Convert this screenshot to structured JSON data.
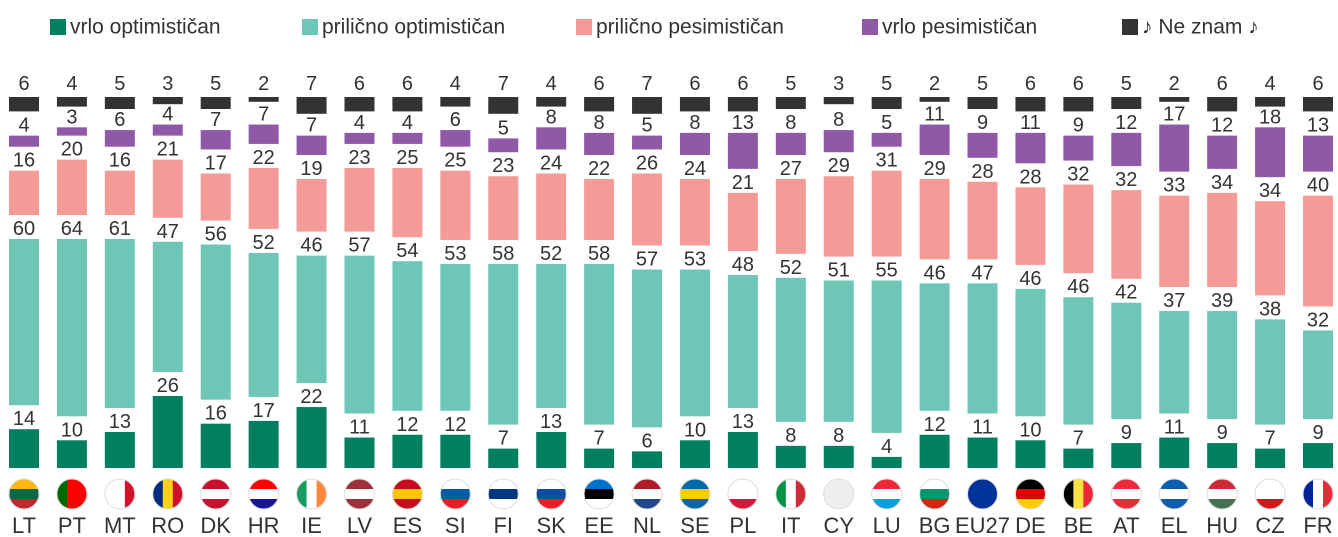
{
  "chart_data": {
    "type": "stacked_bar",
    "categories": [
      "LT",
      "PT",
      "MT",
      "RO",
      "DK",
      "HR",
      "IE",
      "LV",
      "ES",
      "SI",
      "FI",
      "SK",
      "EE",
      "NL",
      "SE",
      "PL",
      "IT",
      "CY",
      "LU",
      "BG",
      "EU27",
      "DE",
      "BE",
      "AT",
      "EL",
      "HU",
      "CZ",
      "FR"
    ],
    "series": [
      {
        "name": "vrlo optimističan",
        "color": "#00805f",
        "values": [
          14,
          10,
          13,
          26,
          16,
          17,
          22,
          11,
          12,
          12,
          7,
          13,
          7,
          6,
          10,
          13,
          8,
          8,
          4,
          12,
          11,
          10,
          7,
          9,
          11,
          9,
          7,
          9
        ]
      },
      {
        "name": "prilično optimističan",
        "color": "#6ec7b6",
        "values": [
          60,
          64,
          61,
          47,
          56,
          52,
          46,
          57,
          54,
          53,
          58,
          52,
          58,
          57,
          53,
          48,
          52,
          51,
          55,
          46,
          47,
          46,
          46,
          42,
          37,
          39,
          38,
          32
        ]
      },
      {
        "name": "prilično pesimističan",
        "color": "#f59b97",
        "values": [
          16,
          20,
          16,
          21,
          17,
          22,
          19,
          23,
          25,
          25,
          23,
          24,
          22,
          26,
          24,
          21,
          27,
          29,
          31,
          29,
          28,
          28,
          32,
          32,
          33,
          34,
          34,
          40
        ]
      },
      {
        "name": "vrlo pesimističan",
        "color": "#9059a8",
        "values": [
          4,
          3,
          6,
          4,
          7,
          7,
          7,
          4,
          4,
          6,
          5,
          8,
          8,
          5,
          8,
          13,
          8,
          8,
          5,
          11,
          9,
          11,
          9,
          12,
          17,
          12,
          18,
          13
        ]
      },
      {
        "name": "♪ Ne znam ♪",
        "color": "#333333",
        "values": [
          6,
          4,
          5,
          3,
          5,
          2,
          7,
          6,
          6,
          4,
          7,
          4,
          6,
          7,
          6,
          6,
          5,
          3,
          5,
          2,
          5,
          6,
          6,
          5,
          2,
          6,
          4,
          6
        ]
      }
    ]
  }
}
